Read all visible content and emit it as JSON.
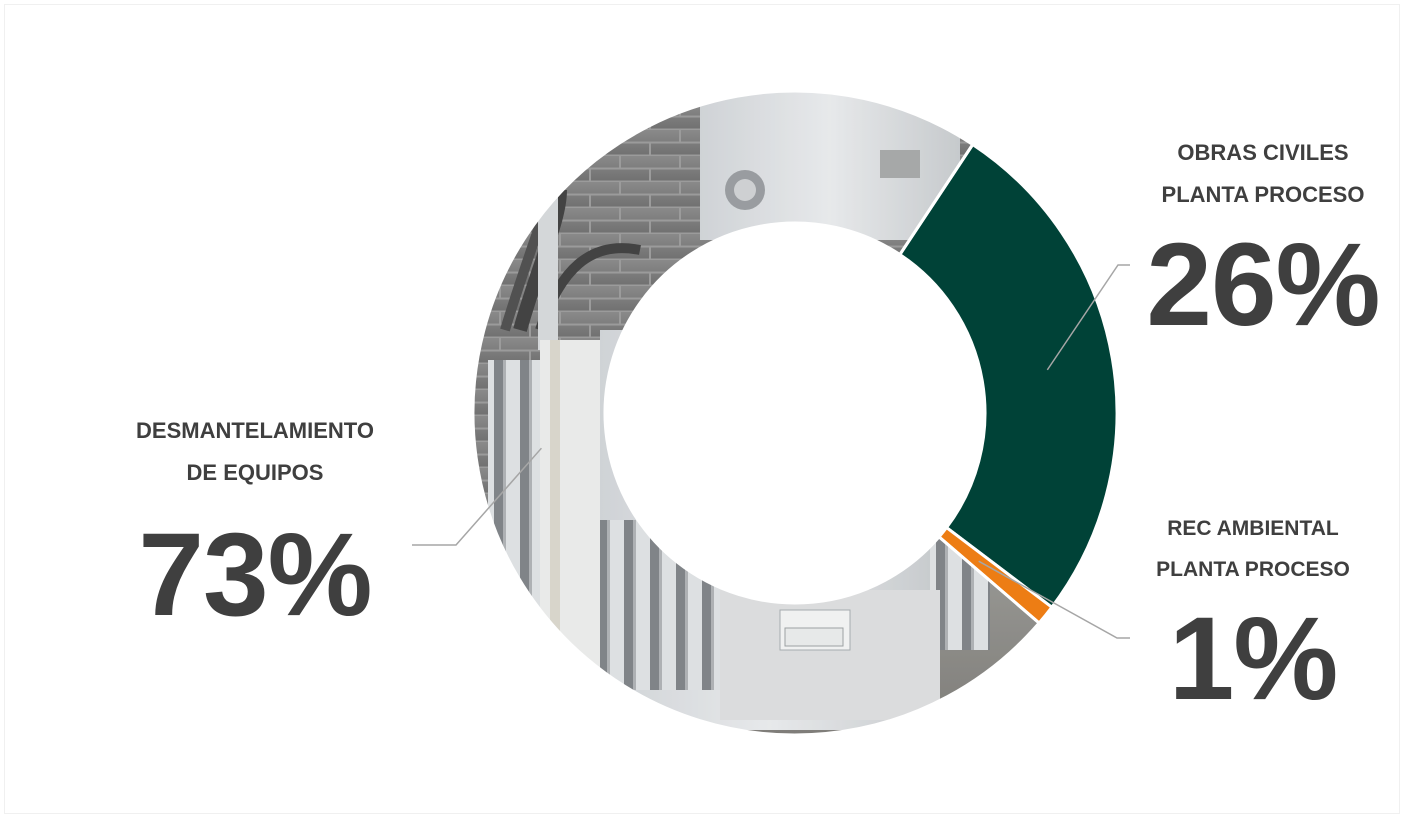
{
  "chart_data": {
    "type": "pie",
    "categories": [
      "DESMANTELAMIENTO DE EQUIPOS",
      "OBRAS CIVILES PLANTA PROCESO",
      "REC AMBIENTAL PLANTA PROCESO"
    ],
    "values": [
      73,
      26,
      1
    ],
    "value_suffix": "%",
    "labels": [
      {
        "line1": "DESMANTELAMIENTO",
        "line2": "DE EQUIPOS",
        "pct": "73%"
      },
      {
        "line1": "OBRAS CIVILES",
        "line2": "PLANTA PROCESO",
        "pct": "26%"
      },
      {
        "line1": "REC AMBIENTAL",
        "line2": "PLANTA PROCESO",
        "pct": "1%"
      }
    ],
    "colors": [
      "photo-fill",
      "#004237",
      "#ed7d14"
    ],
    "legend": "none",
    "hole": "donut"
  },
  "background_image": "photo of a grey industrial electrical transformer against a brick wall"
}
